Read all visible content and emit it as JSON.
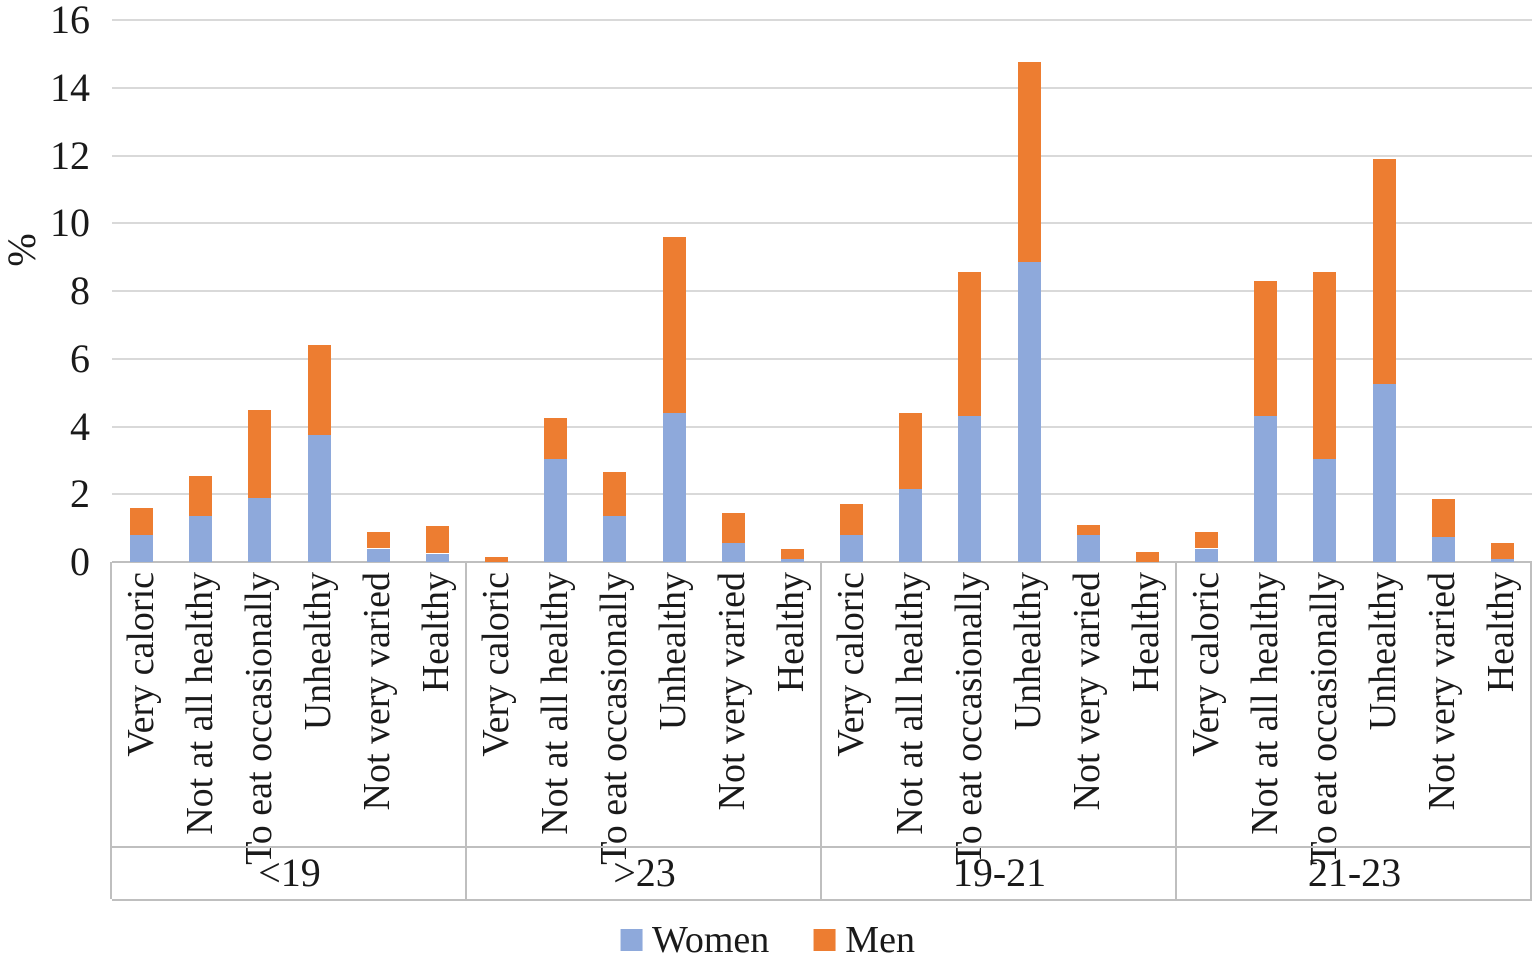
{
  "chart_data": {
    "type": "bar",
    "stacked": true,
    "title": "",
    "ylabel": "%",
    "xlabel": "",
    "ylim": [
      0,
      16
    ],
    "ytick_step": 2,
    "grid": true,
    "legend_position": "bottom-center",
    "grid_color": "#d9d9d9",
    "axis_color": "#bfbfbf",
    "text_color": "#1a1a1a",
    "groups": [
      "<19",
      ">23",
      "19-21",
      "21-23"
    ],
    "categories": [
      "Very caloric",
      "Not at all healthy",
      "To eat occasionally",
      "Unhealthy",
      "Not very varied",
      "Healthy"
    ],
    "series": [
      {
        "name": "Women",
        "color": "#8ea9db",
        "values": [
          [
            0.8,
            1.35,
            1.9,
            3.75,
            0.4,
            0.25
          ],
          [
            0,
            3.05,
            1.35,
            4.4,
            0.55,
            0.1
          ],
          [
            0.8,
            2.15,
            4.3,
            8.85,
            0.8,
            0
          ],
          [
            0.4,
            4.3,
            3.05,
            5.25,
            0.75,
            0.1
          ]
        ]
      },
      {
        "name": "Men",
        "color": "#ed7d31",
        "values": [
          [
            0.8,
            1.2,
            2.6,
            2.65,
            0.5,
            0.8
          ],
          [
            0.15,
            1.2,
            1.3,
            5.2,
            0.9,
            0.3
          ],
          [
            0.9,
            2.25,
            4.25,
            5.9,
            0.3,
            0.3
          ],
          [
            0.5,
            4.0,
            5.5,
            6.65,
            1.1,
            0.45
          ]
        ]
      }
    ]
  }
}
